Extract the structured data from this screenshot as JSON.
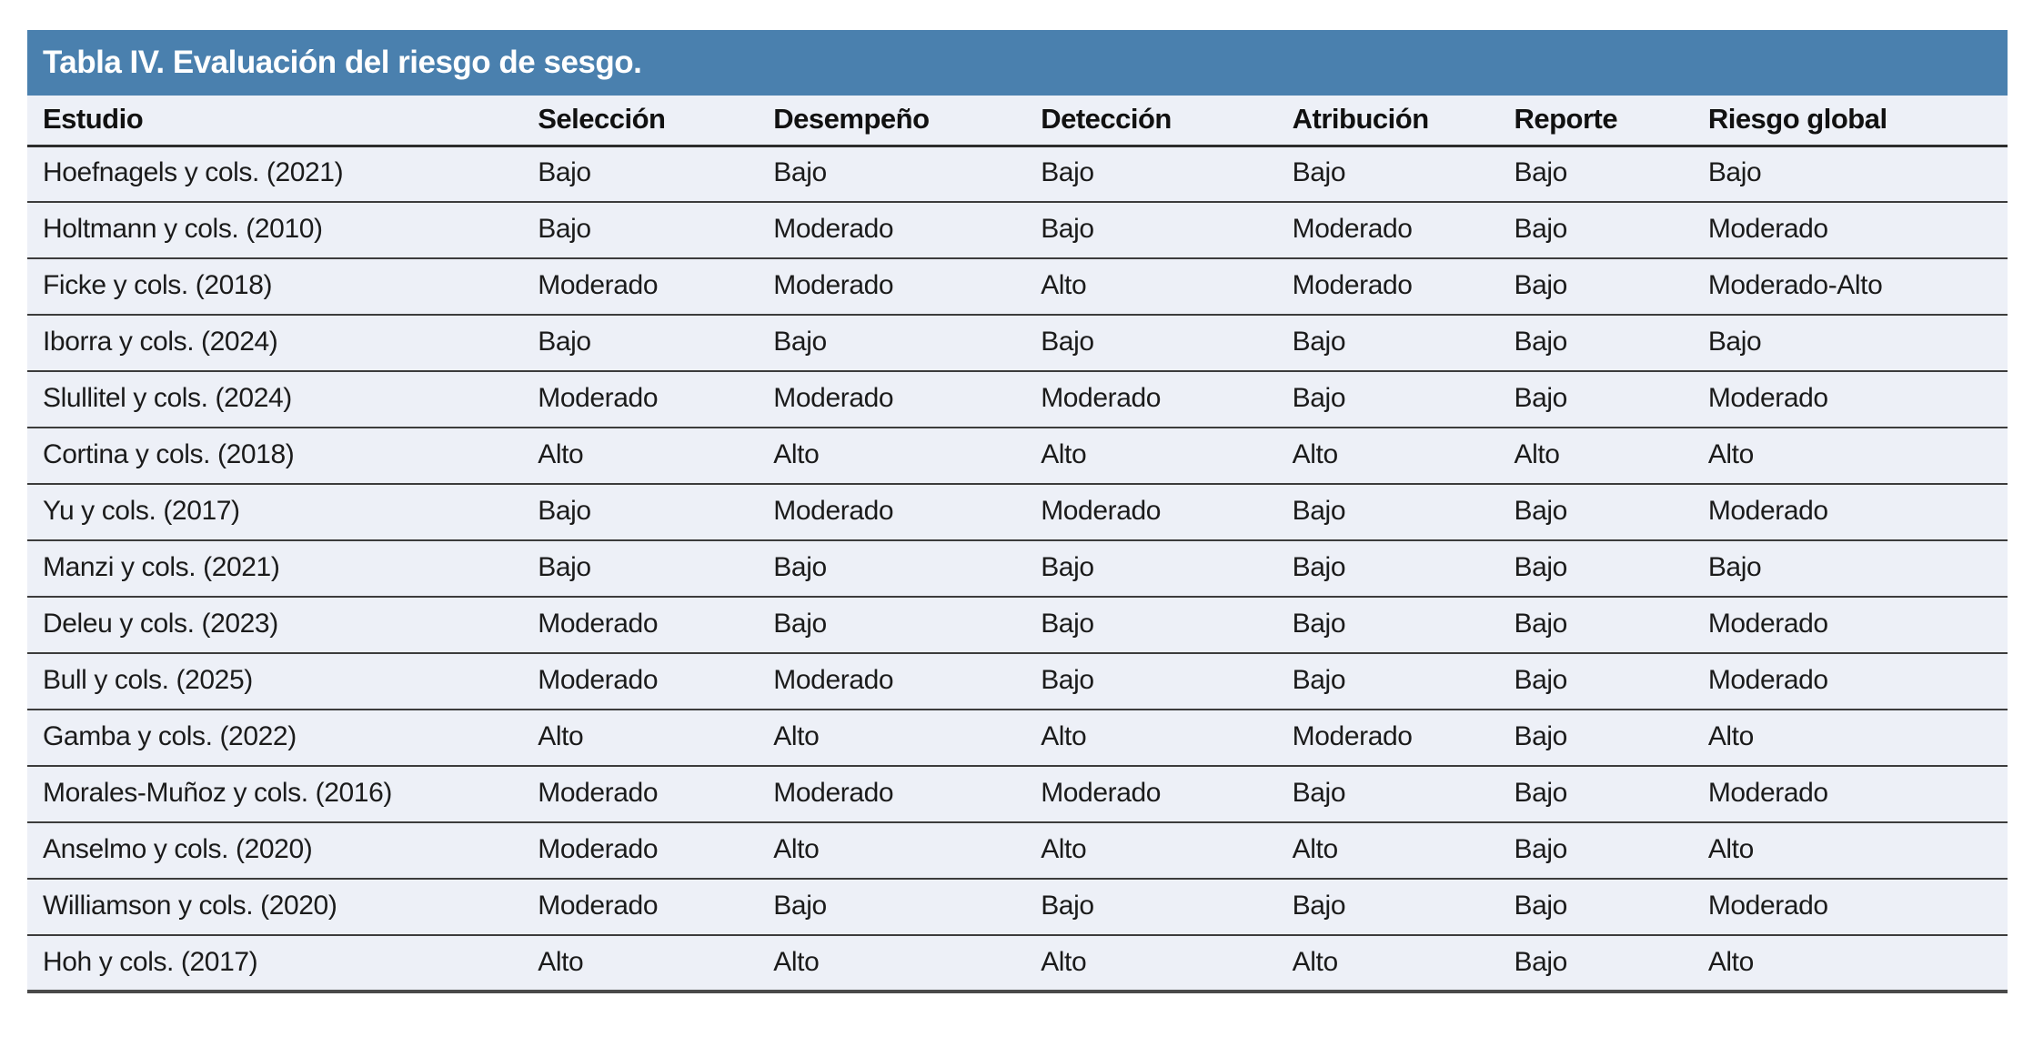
{
  "chart_data": {
    "type": "table",
    "title": "Tabla IV. Evaluación del riesgo de sesgo.",
    "columns": [
      "Estudio",
      "Selección",
      "Desempeño",
      "Detección",
      "Atribución",
      "Reporte",
      "Riesgo global"
    ],
    "rows": [
      [
        "Hoefnagels y cols. (2021)",
        "Bajo",
        "Bajo",
        "Bajo",
        "Bajo",
        "Bajo",
        "Bajo"
      ],
      [
        "Holtmann y cols. (2010)",
        "Bajo",
        "Moderado",
        "Bajo",
        "Moderado",
        "Bajo",
        "Moderado"
      ],
      [
        "Ficke y cols. (2018)",
        "Moderado",
        "Moderado",
        "Alto",
        "Moderado",
        "Bajo",
        "Moderado-Alto"
      ],
      [
        "Iborra y cols. (2024)",
        "Bajo",
        "Bajo",
        "Bajo",
        "Bajo",
        "Bajo",
        "Bajo"
      ],
      [
        "Slullitel y cols. (2024)",
        "Moderado",
        "Moderado",
        "Moderado",
        "Bajo",
        "Bajo",
        "Moderado"
      ],
      [
        "Cortina y cols. (2018)",
        "Alto",
        "Alto",
        "Alto",
        "Alto",
        "Alto",
        "Alto"
      ],
      [
        "Yu y cols. (2017)",
        "Bajo",
        "Moderado",
        "Moderado",
        "Bajo",
        "Bajo",
        "Moderado"
      ],
      [
        "Manzi y cols. (2021)",
        "Bajo",
        "Bajo",
        "Bajo",
        "Bajo",
        "Bajo",
        "Bajo"
      ],
      [
        "Deleu y cols. (2023)",
        "Moderado",
        "Bajo",
        "Bajo",
        "Bajo",
        "Bajo",
        "Moderado"
      ],
      [
        "Bull y cols. (2025)",
        "Moderado",
        "Moderado",
        "Bajo",
        "Bajo",
        "Bajo",
        "Moderado"
      ],
      [
        "Gamba y cols. (2022)",
        "Alto",
        "Alto",
        "Alto",
        "Moderado",
        "Bajo",
        "Alto"
      ],
      [
        "Morales-Muñoz y cols. (2016)",
        "Moderado",
        "Moderado",
        "Moderado",
        "Bajo",
        "Bajo",
        "Moderado"
      ],
      [
        "Anselmo y cols. (2020)",
        "Moderado",
        "Alto",
        "Alto",
        "Alto",
        "Bajo",
        "Alto"
      ],
      [
        "Williamson y cols. (2020)",
        "Moderado",
        "Bajo",
        "Bajo",
        "Bajo",
        "Bajo",
        "Moderado"
      ],
      [
        "Hoh y cols. (2017)",
        "Alto",
        "Alto",
        "Alto",
        "Alto",
        "Bajo",
        "Alto"
      ]
    ]
  },
  "colors": {
    "title_bar": "#4A80AE",
    "title_text": "#FFFFFF",
    "row_background": "#EDF0F7",
    "border": "#3C3C3C",
    "text": "#1B1B1B"
  }
}
